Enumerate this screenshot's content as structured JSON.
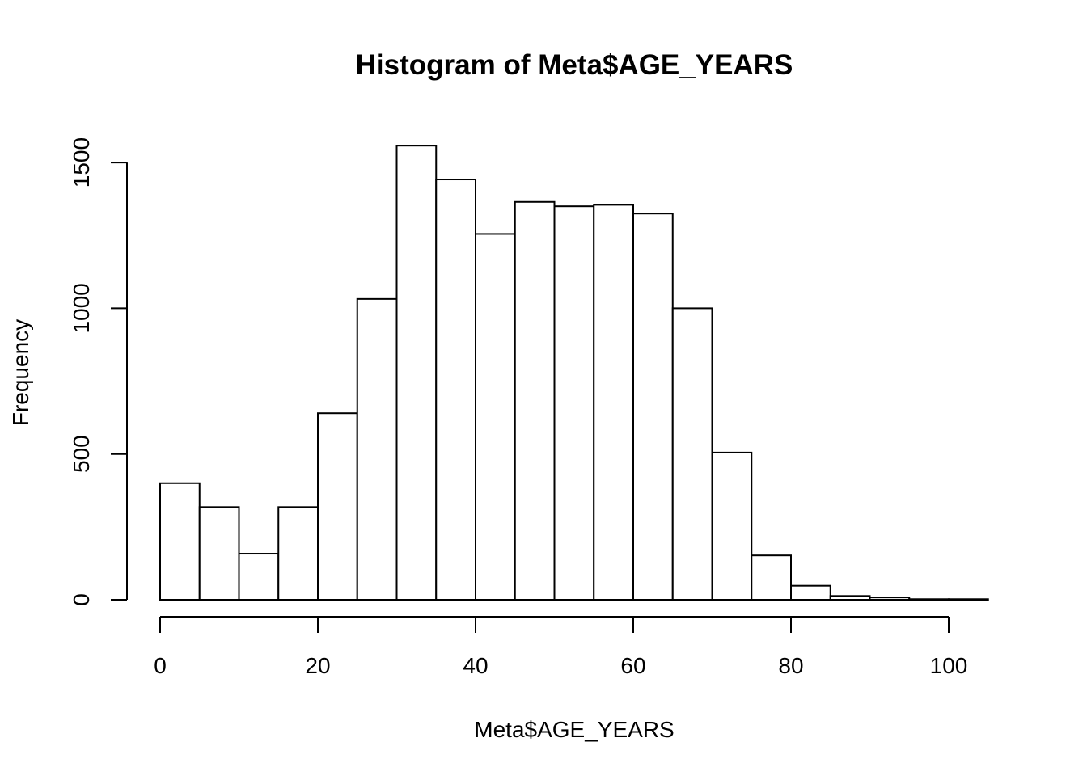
{
  "chart_data": {
    "type": "bar",
    "title": "Histogram of Meta$AGE_YEARS",
    "xlabel": "Meta$AGE_YEARS",
    "ylabel": "Frequency",
    "bin_edges": [
      0,
      5,
      10,
      15,
      20,
      25,
      30,
      35,
      40,
      45,
      50,
      55,
      60,
      65,
      70,
      75,
      80,
      85,
      90,
      95,
      100,
      105
    ],
    "values": [
      400,
      318,
      158,
      318,
      640,
      1032,
      1558,
      1442,
      1255,
      1365,
      1350,
      1355,
      1325,
      1000,
      505,
      152,
      48,
      13,
      8,
      2,
      2
    ],
    "xlim": [
      0,
      105
    ],
    "ylim": [
      0,
      1650
    ],
    "x_ticks": [
      0,
      20,
      40,
      60,
      80,
      100
    ],
    "x_tick_labels": [
      "0",
      "20",
      "40",
      "60",
      "80",
      "100"
    ],
    "y_ticks": [
      0,
      500,
      1000,
      1500
    ],
    "y_tick_labels": [
      "0",
      "500",
      "1000",
      "1500"
    ],
    "grid": false,
    "colors": {
      "bar_fill": "#ffffff",
      "bar_stroke": "#000000",
      "axis": "#000000",
      "background": "#ffffff"
    }
  }
}
